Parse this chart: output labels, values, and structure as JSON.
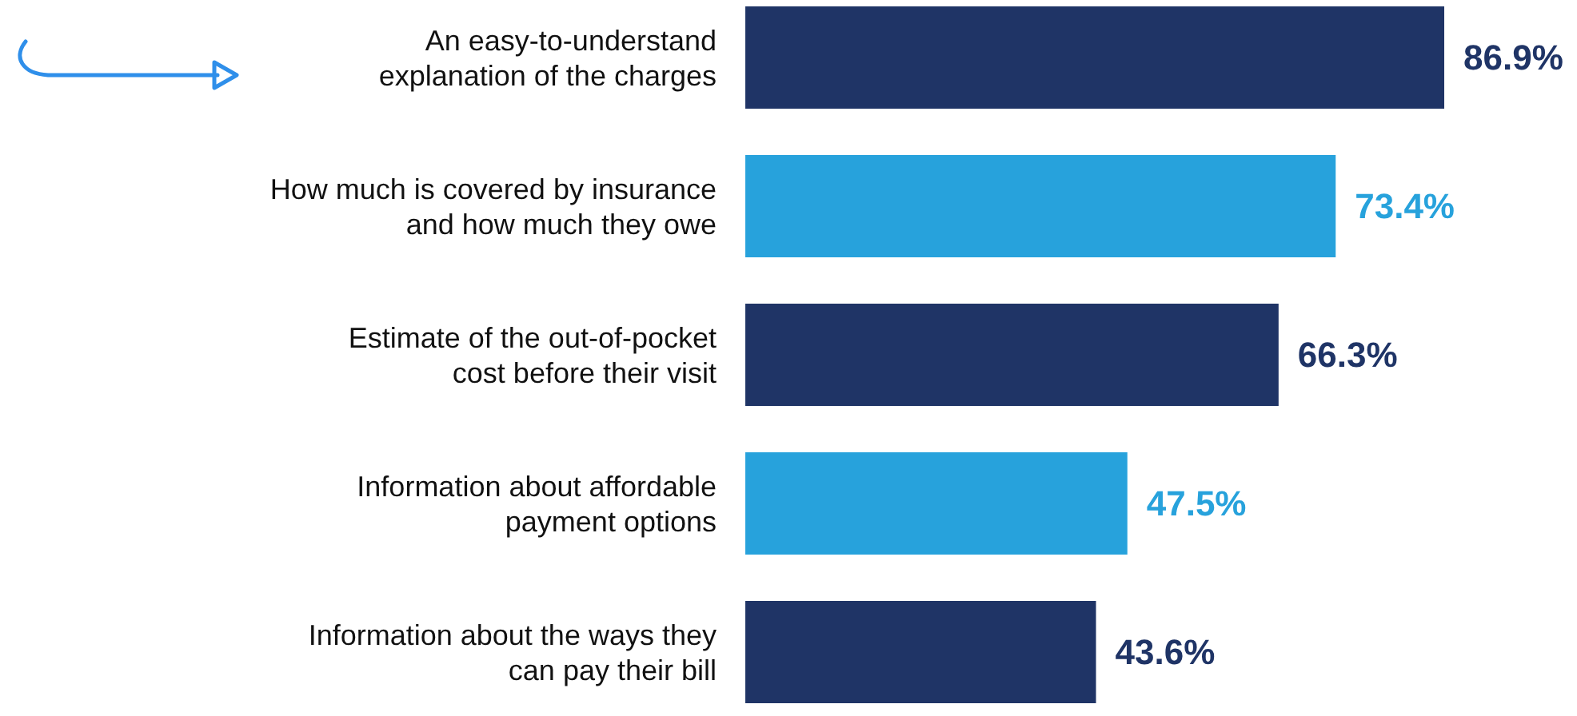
{
  "chart_data": {
    "type": "bar",
    "orientation": "horizontal",
    "categories": [
      "An easy-to-understand\nexplanation of the charges",
      "How much is covered by insurance\nand how much they owe",
      "Estimate of the out-of-pocket\ncost before their visit",
      "Information about affordable\npayment options",
      "Information about the ways they\ncan pay their bill"
    ],
    "values": [
      86.9,
      73.4,
      66.3,
      47.5,
      43.6
    ],
    "colors": [
      "#1f3466",
      "#27a2dc",
      "#1f3466",
      "#27a2dc",
      "#1f3466"
    ],
    "value_labels": [
      "86.9%",
      "73.4%",
      "66.3%",
      "47.5%",
      "43.6%"
    ]
  }
}
